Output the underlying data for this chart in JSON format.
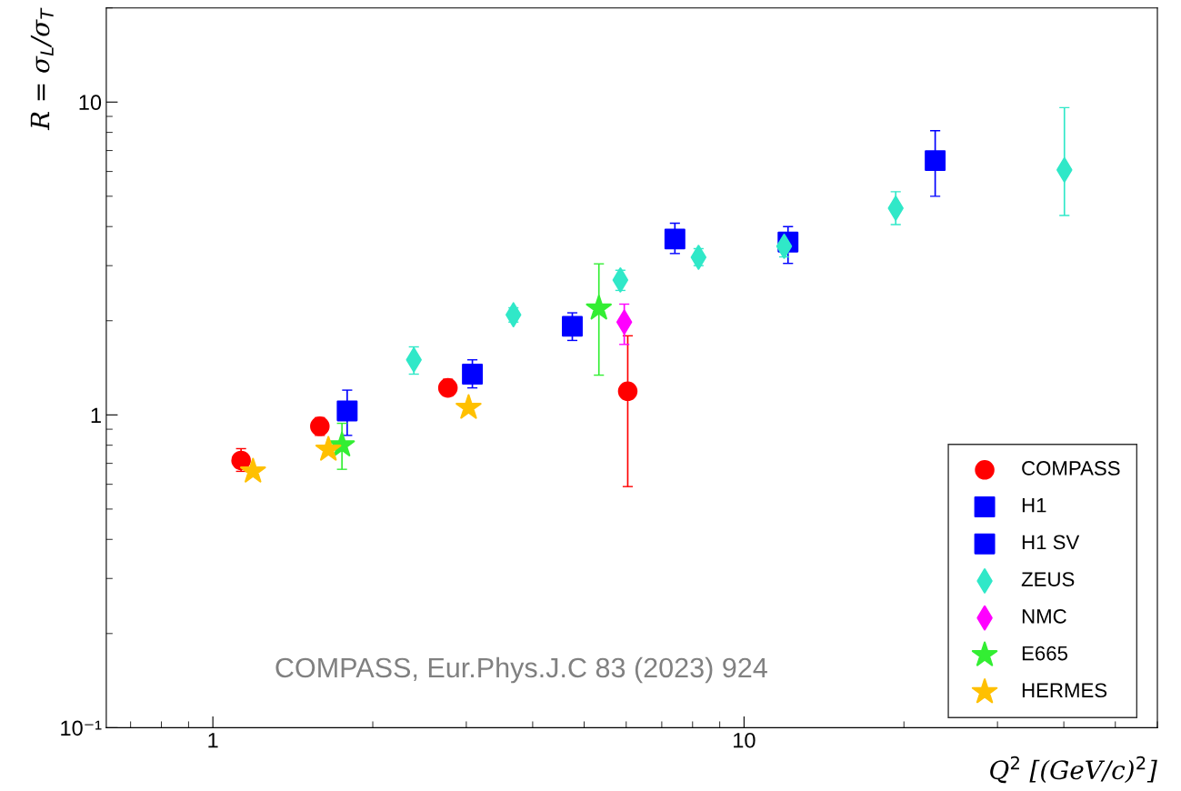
{
  "chart_data": {
    "type": "scatter",
    "xlabel": "Q$^{2}$ [(GeV/c)$^{2}$]",
    "ylabel": "R = σ$_{L}$/σ$_{T}$",
    "log": "xy",
    "xlim": [
      0.63,
      60
    ],
    "ylim": [
      0.1,
      20
    ],
    "xticks": [
      1,
      10
    ],
    "yticks": [
      {
        "value": 0.1,
        "label": "10⁻¹"
      },
      1,
      10
    ],
    "grid": false,
    "legend": "bottom right",
    "annotations": [
      "COMPASS, Eur.Phys.J.C 83 (2023) 924"
    ],
    "series": [
      {
        "name": "COMPASS",
        "color": "#ff0000",
        "marker": "circle",
        "x": [
          1.13,
          1.59,
          2.77,
          6.04
        ],
        "values": [
          0.715,
          0.92,
          1.22,
          1.19
        ],
        "errors": [
          [
            0.66,
            0.78
          ],
          [
            0.86,
            0.98
          ],
          [
            1.15,
            1.3
          ],
          [
            0.59,
            1.79
          ]
        ]
      },
      {
        "name": "H1",
        "color": "#0000ff",
        "marker": "square",
        "x": [
          3.08,
          4.75,
          7.41,
          12.1,
          22.9
        ],
        "values": [
          1.35,
          1.92,
          3.65,
          3.57,
          6.5
        ],
        "errors": [
          [
            1.22,
            1.5
          ],
          [
            1.73,
            2.12
          ],
          [
            3.28,
            4.1
          ],
          [
            3.05,
            4.0
          ],
          [
            5.0,
            8.1
          ]
        ]
      },
      {
        "name": "H1 SV",
        "color": "#0000ff",
        "marker": "square",
        "x": [
          1.79
        ],
        "values": [
          1.03
        ],
        "errors": [
          [
            0.86,
            1.2
          ]
        ]
      },
      {
        "name": "ZEUS",
        "color": "#30e8c8",
        "marker": "diamond",
        "x": [
          2.39,
          3.68,
          5.85,
          8.21,
          11.9,
          19.3,
          40.1
        ],
        "values": [
          1.5,
          2.09,
          2.7,
          3.19,
          3.46,
          4.58,
          6.07
        ],
        "errors": [
          [
            1.35,
            1.65
          ],
          [
            1.98,
            2.2
          ],
          [
            2.5,
            2.9
          ],
          [
            3.0,
            3.4
          ],
          [
            3.2,
            3.75
          ],
          [
            4.06,
            5.17
          ],
          [
            4.34,
            9.6
          ]
        ]
      },
      {
        "name": "NMC",
        "color": "#ff00ff",
        "marker": "diamond",
        "x": [
          5.95
        ],
        "values": [
          1.98
        ],
        "errors": [
          [
            1.68,
            2.26
          ]
        ]
      },
      {
        "name": "E665",
        "color": "#33ee33",
        "marker": "star",
        "x": [
          1.75,
          5.33
        ],
        "values": [
          0.8,
          2.19
        ],
        "errors": [
          [
            0.67,
            0.94
          ],
          [
            1.34,
            3.04
          ]
        ]
      },
      {
        "name": "HERMES",
        "color": "#ffc000",
        "marker": "star",
        "x": [
          1.19,
          1.65,
          3.03
        ],
        "values": [
          0.66,
          0.775,
          1.055
        ]
      }
    ]
  }
}
